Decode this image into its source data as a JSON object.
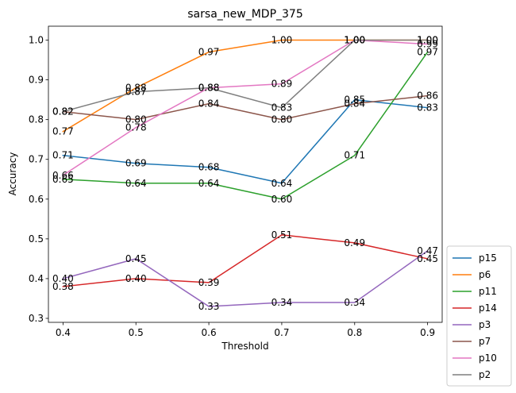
{
  "chart_data": {
    "type": "line",
    "title": "sarsa_new_MDP_375",
    "xlabel": "Threshold",
    "ylabel": "Accuracy",
    "x": [
      0.4,
      0.5,
      0.6,
      0.7,
      0.8,
      0.9
    ],
    "xticks": [
      "0.4",
      "0.5",
      "0.6",
      "0.7",
      "0.8",
      "0.9"
    ],
    "yticks": [
      "0.3",
      "0.4",
      "0.5",
      "0.6",
      "0.7",
      "0.8",
      "0.9",
      "1.0"
    ],
    "xlim": [
      0.38,
      0.92
    ],
    "ylim": [
      0.29,
      1.035
    ],
    "grid": false,
    "legend_position": "outside-lower-right",
    "series": [
      {
        "name": "p15",
        "color": "#1f77b4",
        "values": [
          0.71,
          0.69,
          0.68,
          0.64,
          0.85,
          0.83
        ]
      },
      {
        "name": "p6",
        "color": "#ff7f0e",
        "values": [
          0.77,
          0.88,
          0.97,
          1.0,
          1.0,
          1.0
        ]
      },
      {
        "name": "p11",
        "color": "#2ca02c",
        "values": [
          0.65,
          0.64,
          0.64,
          0.6,
          0.71,
          0.97
        ]
      },
      {
        "name": "p14",
        "color": "#d62728",
        "values": [
          0.38,
          0.4,
          0.39,
          0.51,
          0.49,
          0.45
        ]
      },
      {
        "name": "p3",
        "color": "#9467bd",
        "values": [
          0.4,
          0.45,
          0.33,
          0.34,
          0.34,
          0.47
        ]
      },
      {
        "name": "p7",
        "color": "#8c564b",
        "values": [
          0.82,
          0.8,
          0.84,
          0.8,
          0.84,
          0.86
        ]
      },
      {
        "name": "p10",
        "color": "#e377c2",
        "values": [
          0.66,
          0.78,
          0.88,
          0.89,
          1.0,
          0.99
        ]
      },
      {
        "name": "p2",
        "color": "#7f7f7f",
        "values": [
          0.82,
          0.87,
          0.88,
          0.83,
          1.0,
          1.0
        ]
      }
    ]
  }
}
